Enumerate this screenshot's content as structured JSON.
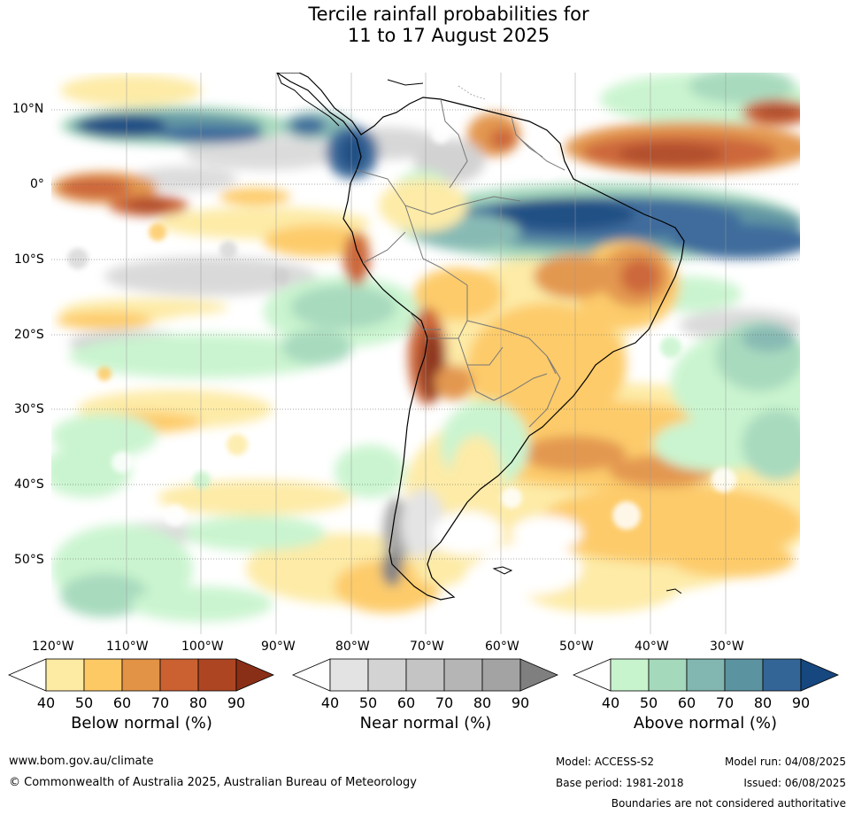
{
  "title_line1": "Tercile rainfall probabilities for",
  "title_line2": "11 to 17 August 2025",
  "lat_labels": [
    "10°N",
    "0°",
    "10°S",
    "20°S",
    "30°S",
    "40°S",
    "50°S"
  ],
  "lon_labels": [
    "120°W",
    "110°W",
    "100°W",
    "90°W",
    "80°W",
    "70°W",
    "60°W",
    "50°W",
    "40°W",
    "30°W"
  ],
  "legends": [
    {
      "title": "Below normal (%)",
      "ticks": [
        "40",
        "50",
        "60",
        "70",
        "80",
        "90"
      ],
      "colors": [
        "#fdeaa3",
        "#fdc964",
        "#e29346",
        "#cb6131",
        "#ad4523",
        "#8a2f17"
      ]
    },
    {
      "title": "Near normal (%)",
      "ticks": [
        "40",
        "50",
        "60",
        "70",
        "80",
        "90"
      ],
      "colors": [
        "#e3e3e3",
        "#d3d3d3",
        "#c4c4c4",
        "#b5b5b5",
        "#a3a3a3",
        "#7f7f7f"
      ]
    },
    {
      "title": "Above normal (%)",
      "ticks": [
        "40",
        "50",
        "60",
        "70",
        "80",
        "90"
      ],
      "colors": [
        "#c8f4cd",
        "#a4d9bb",
        "#82b7b1",
        "#5c93a0",
        "#346597",
        "#16477f"
      ]
    }
  ],
  "footer": {
    "website": "www.bom.gov.au/climate",
    "copyright": "© Commonwealth of Australia 2025, Australian Bureau of Meteorology",
    "model": "Model: ACCESS-S2",
    "base_period": "Base period: 1981-2018",
    "model_run": "Model run: 04/08/2025",
    "issued": "Issued: 06/08/2025",
    "disclaimer": "Boundaries are not considered authoritative"
  }
}
